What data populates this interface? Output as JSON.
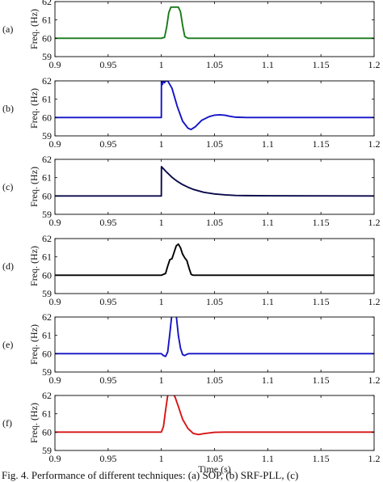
{
  "figure": {
    "xlabel": "Time (s)",
    "caption": "Fig. 4. Performance of different techniques: (a) SOP, (b) SRF-PLL, (c)"
  },
  "chart_data": [
    {
      "type": "line",
      "panel_label": "(a)",
      "ylabel": "Freq. (Hz)",
      "xlabel": "",
      "xlim": [
        0.9,
        1.2
      ],
      "ylim": [
        59,
        62
      ],
      "xticks": [
        "0.9",
        "0.95",
        "1",
        "1.05",
        "1.1",
        "1.15",
        "1.2"
      ],
      "yticks": [
        "59",
        "60",
        "61",
        "62"
      ],
      "grid": false,
      "series": [
        {
          "color": "#1a7a1a",
          "x": [
            0.9,
            1.0,
            1.003,
            1.005,
            1.007,
            1.009,
            1.016,
            1.018,
            1.02,
            1.022,
            1.025,
            1.2
          ],
          "y": [
            60,
            60,
            60.05,
            60.6,
            61.4,
            61.7,
            61.7,
            61.45,
            60.7,
            60.1,
            60,
            60
          ]
        }
      ]
    },
    {
      "type": "line",
      "panel_label": "(b)",
      "ylabel": "Freq. (Hz)",
      "xlabel": "",
      "xlim": [
        0.9,
        1.2
      ],
      "ylim": [
        59,
        62
      ],
      "xticks": [
        "0.9",
        "0.95",
        "1",
        "1.05",
        "1.1",
        "1.15",
        "1.2"
      ],
      "yticks": [
        "59",
        "60",
        "61",
        "62"
      ],
      "grid": false,
      "series": [
        {
          "color": "#1414c8",
          "x": [
            0.9,
            1.0,
            1.0001,
            1.001,
            1.002,
            1.003,
            1.004,
            1.006,
            1.01,
            1.015,
            1.02,
            1.025,
            1.028,
            1.032,
            1.038,
            1.045,
            1.05,
            1.055,
            1.06,
            1.065,
            1.07,
            1.08,
            1.09,
            1.2
          ],
          "y": [
            60,
            60,
            62,
            61.8,
            62,
            61.9,
            62,
            62,
            61.6,
            60.6,
            59.8,
            59.42,
            59.35,
            59.5,
            59.85,
            60.05,
            60.13,
            60.15,
            60.12,
            60.06,
            60.02,
            60,
            60,
            60
          ]
        }
      ]
    },
    {
      "type": "line",
      "panel_label": "(c)",
      "ylabel": "Freq. (Hz)",
      "xlabel": "",
      "xlim": [
        0.9,
        1.2
      ],
      "ylim": [
        59,
        62
      ],
      "xticks": [
        "0.9",
        "0.95",
        "1",
        "1.05",
        "1.1",
        "1.15",
        "1.2"
      ],
      "yticks": [
        "59",
        "60",
        "61",
        "62"
      ],
      "grid": false,
      "series": [
        {
          "color": "#0a0a4a",
          "x": [
            0.9,
            1.0,
            1.0001,
            1.005,
            1.01,
            1.015,
            1.02,
            1.025,
            1.03,
            1.04,
            1.05,
            1.06,
            1.07,
            1.08,
            1.1,
            1.2
          ],
          "y": [
            60,
            60,
            61.6,
            61.3,
            61.02,
            60.8,
            60.62,
            60.48,
            60.36,
            60.2,
            60.11,
            60.06,
            60.03,
            60.02,
            60.01,
            60
          ]
        }
      ]
    },
    {
      "type": "line",
      "panel_label": "(d)",
      "ylabel": "Freq. (Hz)",
      "xlabel": "",
      "xlim": [
        0.9,
        1.2
      ],
      "ylim": [
        59,
        62
      ],
      "xticks": [
        "0.9",
        "0.95",
        "1",
        "1.05",
        "1.1",
        "1.15",
        "1.2"
      ],
      "yticks": [
        "59",
        "60",
        "61",
        "62"
      ],
      "grid": false,
      "series": [
        {
          "color": "#000000",
          "x": [
            0.9,
            1.0,
            1.004,
            1.006,
            1.008,
            1.01,
            1.012,
            1.014,
            1.016,
            1.018,
            1.02,
            1.022,
            1.024,
            1.026,
            1.028,
            1.03,
            1.2
          ],
          "y": [
            60,
            60,
            60.1,
            60.5,
            60.85,
            60.9,
            61.25,
            61.6,
            61.7,
            61.5,
            61.15,
            60.95,
            60.8,
            60.4,
            60.05,
            60,
            60
          ]
        }
      ]
    },
    {
      "type": "line",
      "panel_label": "(e)",
      "ylabel": "Freq. (Hz)",
      "xlabel": "",
      "xlim": [
        0.9,
        1.2
      ],
      "ylim": [
        59,
        62
      ],
      "xticks": [
        "0.9",
        "0.95",
        "1",
        "1.05",
        "1.1",
        "1.15",
        "1.2"
      ],
      "yticks": [
        "59",
        "60",
        "61",
        "62"
      ],
      "grid": false,
      "series": [
        {
          "color": "#1414c8",
          "x": [
            0.9,
            1.0,
            1.002,
            1.004,
            1.006,
            1.008,
            1.01,
            1.012,
            1.014,
            1.016,
            1.018,
            1.02,
            1.022,
            1.024,
            1.026,
            1.03,
            1.2
          ],
          "y": [
            60,
            60,
            59.9,
            59.85,
            60.1,
            61.1,
            62.2,
            62.6,
            62.1,
            61.0,
            60.3,
            59.95,
            59.9,
            59.97,
            60,
            60,
            60
          ]
        }
      ]
    },
    {
      "type": "line",
      "panel_label": "(f)",
      "ylabel": "Freq. (Hz)",
      "xlabel": "Time (s)",
      "xlim": [
        0.9,
        1.2
      ],
      "ylim": [
        59,
        62
      ],
      "xticks": [
        "0.9",
        "0.95",
        "1",
        "1.05",
        "1.1",
        "1.15",
        "1.2"
      ],
      "yticks": [
        "59",
        "60",
        "61",
        "62"
      ],
      "grid": false,
      "series": [
        {
          "color": "#d81414",
          "x": [
            0.9,
            1.0,
            1.002,
            1.004,
            1.006,
            1.008,
            1.01,
            1.013,
            1.016,
            1.02,
            1.025,
            1.03,
            1.035,
            1.04,
            1.05,
            1.06,
            1.2
          ],
          "y": [
            60,
            60,
            60.3,
            61.2,
            62,
            62.2,
            62.2,
            61.9,
            61.4,
            60.7,
            60.2,
            59.93,
            59.87,
            59.92,
            59.99,
            60,
            60
          ]
        }
      ]
    }
  ]
}
